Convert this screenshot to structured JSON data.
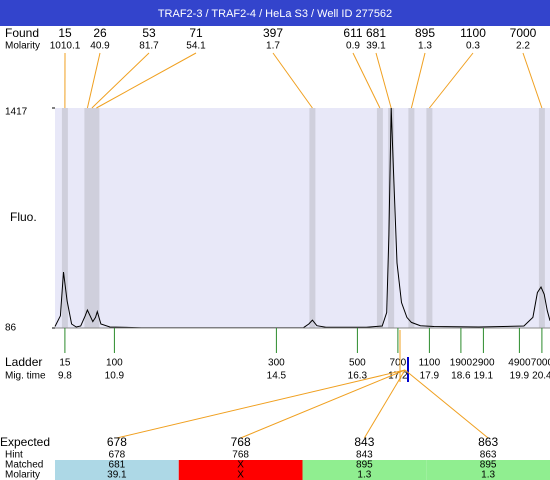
{
  "header": {
    "title": "TRAF2-3 / TRAF2-4 / HeLa S3 / Well ID 277562"
  },
  "found": {
    "label": "Found",
    "molarity_label": "Molarity",
    "peaks": [
      {
        "size": 15,
        "molarity": "1010.1",
        "time": 9.8
      },
      {
        "size": 26,
        "molarity": "40.9",
        "time": 10.3
      },
      {
        "size": 53,
        "molarity": "81.7",
        "time": 10.4
      },
      {
        "size": 71,
        "molarity": "54.1",
        "time": 10.5
      },
      {
        "size": 397,
        "molarity": "1.7",
        "time": 15.3
      },
      {
        "size": 611,
        "molarity": "0.9",
        "time": 16.8
      },
      {
        "size": 681,
        "molarity": "39.1",
        "time": 17.05
      },
      {
        "size": 895,
        "molarity": "1.3",
        "time": 17.5
      },
      {
        "size": 1100,
        "molarity": "0.3",
        "time": 17.9
      },
      {
        "size": 7000,
        "molarity": "2.2",
        "time": 20.4
      }
    ]
  },
  "plot": {
    "y_label": "Fluo.",
    "ylim": [
      86,
      1417
    ],
    "yticks": [
      86,
      1417
    ],
    "xlim": [
      9.58,
      20.58
    ],
    "trace": {
      "time": [
        9.58,
        9.7,
        9.77,
        9.85,
        9.95,
        10.05,
        10.15,
        10.25,
        10.3,
        10.36,
        10.42,
        10.48,
        10.52,
        10.6,
        10.8,
        11.5,
        13,
        15.1,
        15.22,
        15.3,
        15.4,
        15.6,
        16.5,
        16.85,
        16.95,
        17.0,
        17.05,
        17.1,
        17.18,
        17.28,
        17.4,
        17.5,
        17.7,
        18,
        19,
        20,
        20.2,
        20.3,
        20.38,
        20.45,
        20.52,
        20.58
      ],
      "fluo": [
        95,
        160,
        425,
        250,
        110,
        92,
        98,
        160,
        195,
        160,
        125,
        150,
        185,
        110,
        92,
        88,
        87,
        88,
        110,
        134,
        100,
        90,
        90,
        98,
        180,
        650,
        1417,
        1050,
        480,
        240,
        150,
        120,
        100,
        95,
        92,
        98,
        150,
        300,
        334,
        290,
        190,
        130
      ]
    }
  },
  "ladder": {
    "label": "Ladder",
    "time_label": "Mig. time",
    "peaks": [
      {
        "size": 15,
        "time": 9.8
      },
      {
        "size": 100,
        "time": 10.9
      },
      {
        "size": 300,
        "time": 14.5
      },
      {
        "size": 500,
        "time": 16.3
      },
      {
        "size": 700,
        "time": 17.2
      },
      {
        "size": 1100,
        "time": 17.9
      },
      {
        "size": 1900,
        "time": 18.6
      },
      {
        "size": 2900,
        "time": 19.1
      },
      {
        "size": 4900,
        "time": 19.9
      },
      {
        "size": 7000,
        "time": 20.4
      }
    ]
  },
  "expected": {
    "labels": [
      "Expected",
      "Hint",
      "Matched",
      "Molarity"
    ],
    "columns": [
      {
        "expected": 678,
        "hint": 678,
        "matched": "681",
        "molarity": "39.1",
        "color": "#add8e6"
      },
      {
        "expected": 768,
        "hint": 768,
        "matched": "X",
        "molarity": "X",
        "color": "#ff0000"
      },
      {
        "expected": 843,
        "hint": 843,
        "matched": "895",
        "molarity": "1.3",
        "color": "#90ee90"
      },
      {
        "expected": 863,
        "hint": 863,
        "matched": "895",
        "molarity": "1.3",
        "color": "#90ee90"
      }
    ]
  }
}
